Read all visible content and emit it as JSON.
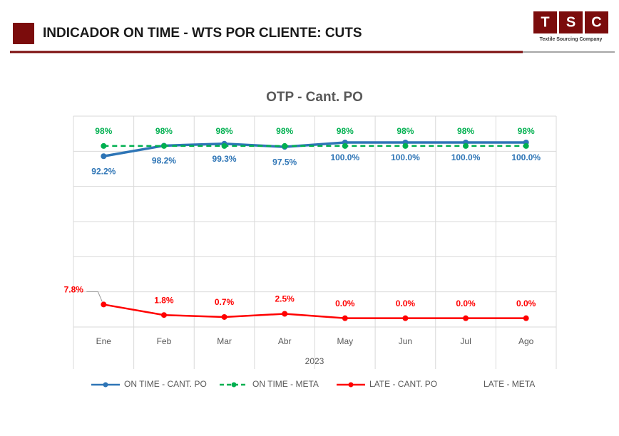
{
  "header": {
    "title": "INDICADOR ON TIME - WTS POR CLIENTE: CUTS",
    "logo_letters": [
      "T",
      "S",
      "C"
    ],
    "logo_tagline": "Textile Sourcing Company"
  },
  "chart_data": {
    "type": "line",
    "title": "OTP - Cant. PO",
    "xlabel": "2023",
    "categories": [
      "Ene",
      "Feb",
      "Mar",
      "Abr",
      "May",
      "Jun",
      "Jul",
      "Ago"
    ],
    "series": [
      {
        "name": "ON TIME - CANT. PO",
        "color": "#2e75b6",
        "values": [
          92.2,
          98.2,
          99.3,
          97.5,
          100,
          100,
          100,
          100
        ],
        "value_labels": [
          "92.2%",
          "98.2%",
          "99.3%",
          "97.5%",
          "100.0%",
          "100.0%",
          "100.0%",
          "100.0%"
        ]
      },
      {
        "name": "ON TIME - META",
        "color": "#00b050",
        "dashed": true,
        "values": [
          98,
          98,
          98,
          98,
          98,
          98,
          98,
          98
        ],
        "value_labels": [
          "98%",
          "98%",
          "98%",
          "98%",
          "98%",
          "98%",
          "98%",
          "98%"
        ]
      },
      {
        "name": "LATE - CANT. PO",
        "color": "#ff0000",
        "values": [
          7.8,
          1.8,
          0.7,
          2.5,
          0,
          0,
          0,
          0
        ],
        "value_labels": [
          "7.8%",
          "1.8%",
          "0.7%",
          "2.5%",
          "0.0%",
          "0.0%",
          "0.0%",
          "0.0%"
        ]
      },
      {
        "name": "LATE - META",
        "values": [
          null,
          null,
          null,
          null,
          null,
          null,
          null,
          null
        ]
      }
    ],
    "ylim": [
      -5,
      115
    ],
    "yticks": [
      -5,
      15,
      35,
      55,
      75,
      95,
      115
    ],
    "grid": true
  }
}
